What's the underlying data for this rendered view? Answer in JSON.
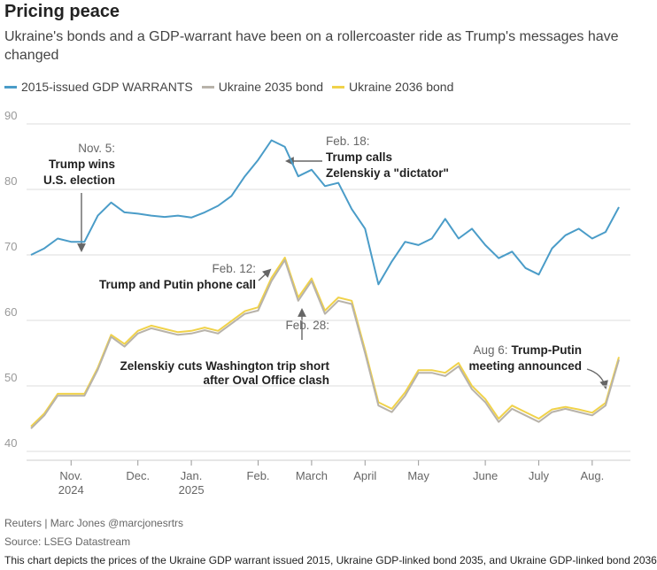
{
  "chart_data": {
    "type": "line",
    "title": "Pricing peace",
    "subtitle": "Ukraine's bonds and a GDP-warrant have been on a rollercoaster ride as Trump's messages have changed",
    "categories": [
      null,
      null,
      null,
      "Nov. 2024",
      null,
      null,
      null,
      null,
      "Dec.",
      null,
      null,
      null,
      "Jan. 2025",
      null,
      null,
      null,
      null,
      "Feb.",
      null,
      null,
      null,
      "March",
      null,
      null,
      null,
      "April",
      null,
      null,
      null,
      "May",
      null,
      null,
      null,
      null,
      "June",
      null,
      null,
      null,
      "July",
      null,
      null,
      null,
      "Aug.",
      null,
      null
    ],
    "series": [
      {
        "name": "2015-issued GDP WARRANTS",
        "color": "#4a9cc8",
        "values": [
          70,
          71,
          72.5,
          72,
          72,
          76,
          78,
          76.5,
          76.3,
          76,
          75.8,
          76,
          75.7,
          76.5,
          77.5,
          79,
          82,
          84.5,
          87.5,
          86.5,
          82,
          83,
          80.5,
          81,
          77,
          74,
          65.5,
          69,
          72,
          71.5,
          72.5,
          75.5,
          72.5,
          74,
          71.5,
          69.5,
          70.5,
          68,
          67,
          71,
          73,
          74,
          72.5,
          73.5,
          77.3
        ]
      },
      {
        "name": "Ukraine 2035 bond",
        "color": "#b8b3aa",
        "values": [
          43.5,
          45.5,
          48.5,
          48.5,
          48.5,
          52.5,
          57.5,
          56,
          58,
          58.8,
          58.3,
          57.8,
          58,
          58.5,
          58,
          59.5,
          61,
          61.5,
          66,
          69.2,
          63,
          66,
          61,
          63,
          62.5,
          55,
          47,
          46,
          48.5,
          52,
          52,
          51.5,
          53,
          49.5,
          47.5,
          44.5,
          46.5,
          45.5,
          44.5,
          46,
          46.5,
          46,
          45.5,
          47,
          54
        ]
      },
      {
        "name": "Ukraine 2036 bond",
        "color": "#f0d24a",
        "values": [
          43.8,
          45.8,
          48.8,
          48.8,
          48.8,
          52.8,
          57.8,
          56.4,
          58.4,
          59.2,
          58.7,
          58.2,
          58.4,
          58.9,
          58.4,
          59.9,
          61.4,
          62,
          66.5,
          69.6,
          63.5,
          66.4,
          61.5,
          63.5,
          63,
          55.5,
          47.5,
          46.5,
          49,
          52.4,
          52.4,
          52,
          53.5,
          50,
          48,
          45,
          47,
          46,
          45,
          46.4,
          46.8,
          46.4,
          45.9,
          47.4,
          54.4
        ]
      }
    ],
    "ylim": [
      38,
      92
    ],
    "yticks": [
      40,
      50,
      60,
      70,
      80,
      90
    ],
    "grid": true,
    "annotations": [
      {
        "lines": [
          "Nov. 5:",
          "Trump wins",
          "U.S. election"
        ]
      },
      {
        "lines": [
          "Feb. 18:",
          "Trump calls",
          "Zelenskiy a \"dictator\""
        ]
      },
      {
        "lines": [
          "Feb. 12:",
          "Trump and Putin phone call"
        ]
      },
      {
        "lines": [
          "Feb. 28:",
          "Zelenskiy cuts Washington trip short",
          "after Oval Office clash"
        ]
      },
      {
        "lines": [
          "Aug 6:",
          "Trump-Putin",
          "meeting announced"
        ]
      }
    ],
    "credit": "Reuters | Marc Jones @marcjonesrtrs",
    "source": "Source: LSEG Datastream",
    "description": "This chart depicts the prices of the Ukraine GDP warrant issued 2015, Ukraine GDP-linked bond 2035, and Ukraine GDP-linked bond 2036"
  }
}
